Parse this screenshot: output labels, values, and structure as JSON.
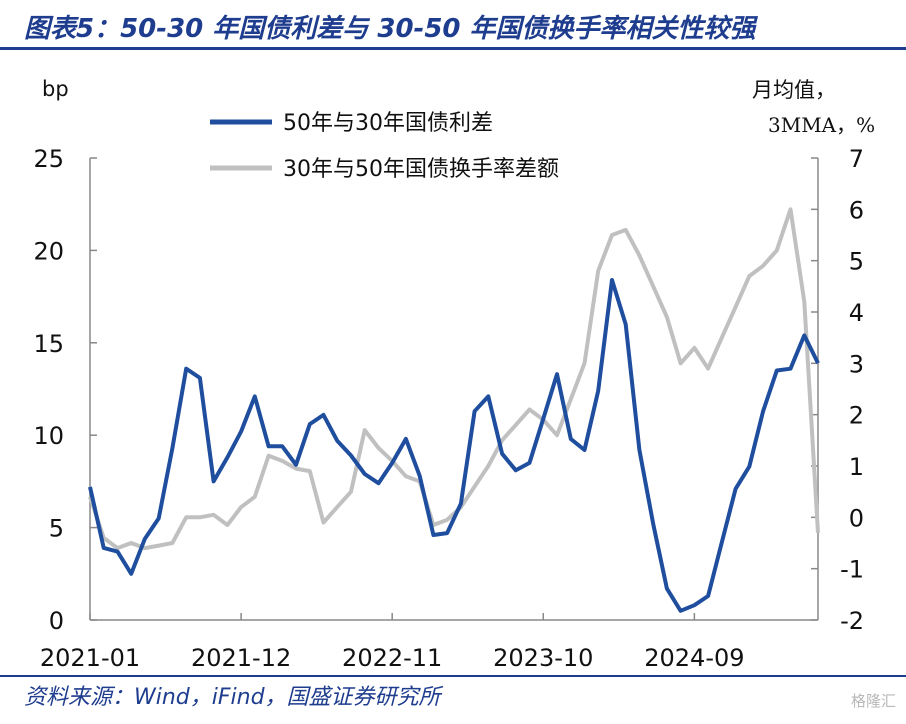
{
  "header": {
    "title": "图表5：50-30 年国债利差与 30-50 年国债换手率相关性较强"
  },
  "footer": {
    "source": "资料来源：Wind，iFind，国盛证券研究所",
    "watermark": "格隆汇"
  },
  "chart_data": {
    "type": "line",
    "left_unit": "bp",
    "right_unit_line1": "月均值，",
    "right_unit_line2": "3MMA，%",
    "x_labels": [
      "2021-01",
      "2021-12",
      "2022-11",
      "2023-10",
      "2024-09"
    ],
    "left_ylim": [
      0,
      25
    ],
    "left_ticks": [
      0,
      5,
      10,
      15,
      20,
      25
    ],
    "right_ylim": [
      -2,
      7
    ],
    "right_ticks": [
      -2,
      -1,
      0,
      1,
      2,
      3,
      4,
      5,
      6,
      7
    ],
    "colors": {
      "spread": "#1f4e9e",
      "turnover": "#c0c0c0"
    },
    "series": [
      {
        "name": "50年与30年国债利差",
        "axis": "left",
        "values": [
          7.2,
          3.9,
          3.7,
          2.5,
          4.4,
          5.5,
          9.3,
          13.6,
          13.1,
          7.5,
          8.8,
          10.2,
          12.1,
          9.4,
          9.4,
          8.4,
          10.6,
          11.1,
          9.7,
          8.9,
          7.9,
          7.4,
          8.5,
          9.8,
          7.8,
          4.6,
          4.7,
          6.3,
          11.3,
          12.1,
          9.0,
          8.1,
          8.5,
          10.9,
          13.3,
          9.8,
          9.2,
          12.4,
          18.4,
          16.0,
          9.2,
          5.2,
          1.7,
          0.5,
          0.8,
          1.3,
          4.2,
          7.1,
          8.3,
          11.3,
          13.5,
          13.6,
          15.4,
          13.9
        ]
      },
      {
        "name": "30年与50年国债换手率差额",
        "axis": "right",
        "values": [
          0.4,
          -0.4,
          -0.6,
          -0.5,
          -0.6,
          -0.55,
          -0.5,
          0.0,
          0.0,
          0.05,
          -0.15,
          0.2,
          0.4,
          1.2,
          1.1,
          0.95,
          0.9,
          -0.1,
          0.2,
          0.5,
          1.7,
          1.35,
          1.1,
          0.8,
          0.7,
          -0.15,
          -0.05,
          0.2,
          0.6,
          1.0,
          1.5,
          1.8,
          2.1,
          1.9,
          1.6,
          2.3,
          3.0,
          4.8,
          5.5,
          5.6,
          5.1,
          4.5,
          3.9,
          3.0,
          3.3,
          2.9,
          3.5,
          4.1,
          4.7,
          4.9,
          5.2,
          6.0,
          4.2,
          -0.3
        ]
      }
    ],
    "xlabel": "",
    "ylabel": ""
  }
}
